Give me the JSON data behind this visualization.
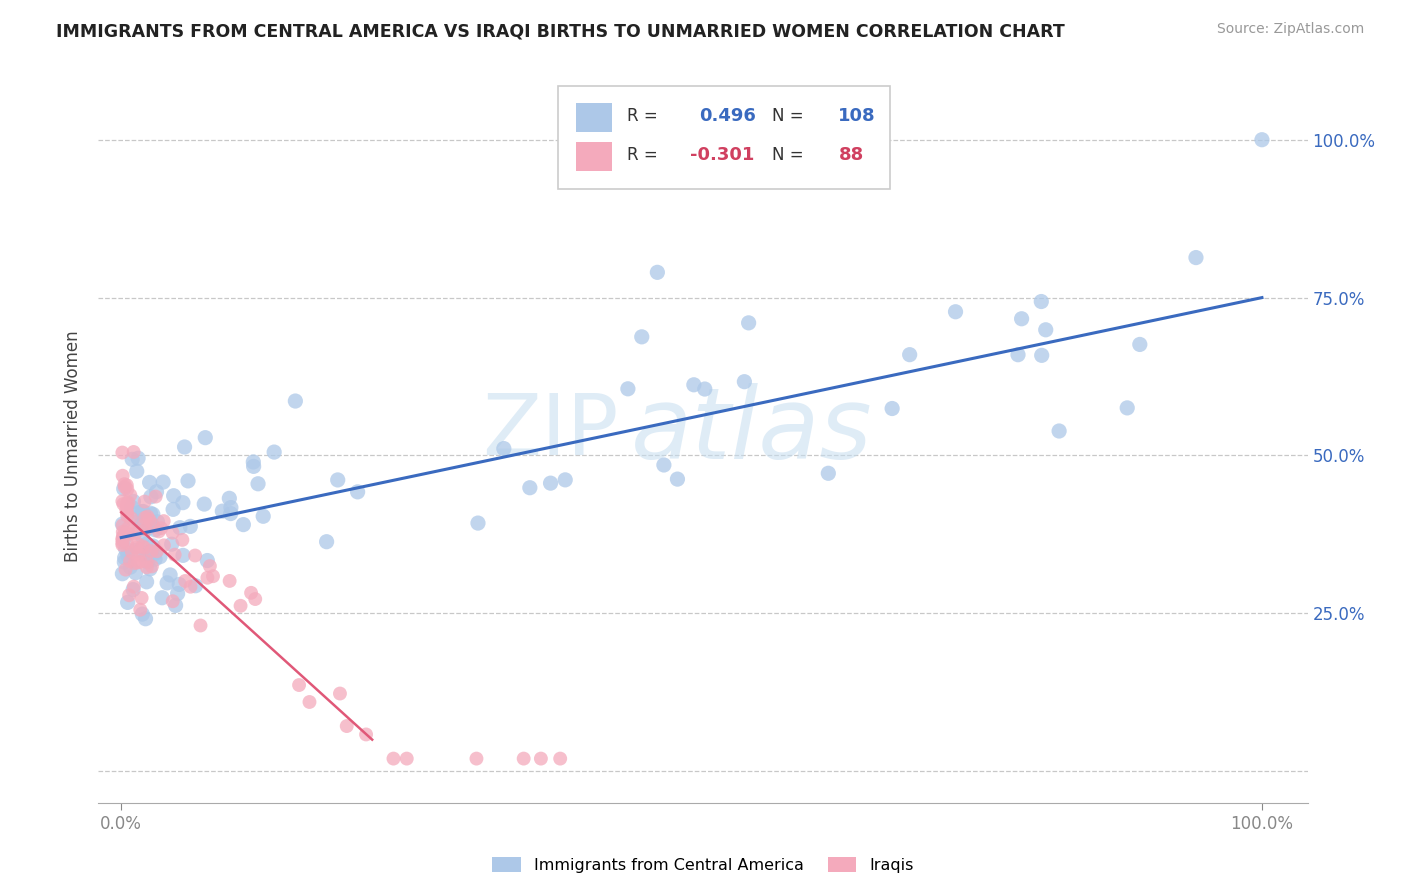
{
  "title": "IMMIGRANTS FROM CENTRAL AMERICA VS IRAQI BIRTHS TO UNMARRIED WOMEN CORRELATION CHART",
  "source": "Source: ZipAtlas.com",
  "ylabel": "Births to Unmarried Women",
  "legend1_r": "0.496",
  "legend1_n": "108",
  "legend2_r": "-0.301",
  "legend2_n": "88",
  "blue_color": "#adc8e8",
  "pink_color": "#f4aabc",
  "blue_line_color": "#3a6abf",
  "pink_line_color": "#e05878",
  "blue_line_x": [
    0.0,
    1.0
  ],
  "blue_line_y": [
    0.37,
    0.75
  ],
  "pink_line_x": [
    0.0,
    0.22
  ],
  "pink_line_y": [
    0.41,
    0.05
  ],
  "ytick_vals": [
    0.0,
    0.25,
    0.5,
    0.75,
    1.0
  ],
  "ytick_labels": [
    "",
    "25.0%",
    "50.0%",
    "75.0%",
    "100.0%"
  ],
  "xtick_vals": [
    0.0,
    1.0
  ],
  "xtick_labels": [
    "0.0%",
    "100.0%"
  ],
  "xlim": [
    -0.02,
    1.04
  ],
  "ylim": [
    -0.05,
    1.08
  ]
}
